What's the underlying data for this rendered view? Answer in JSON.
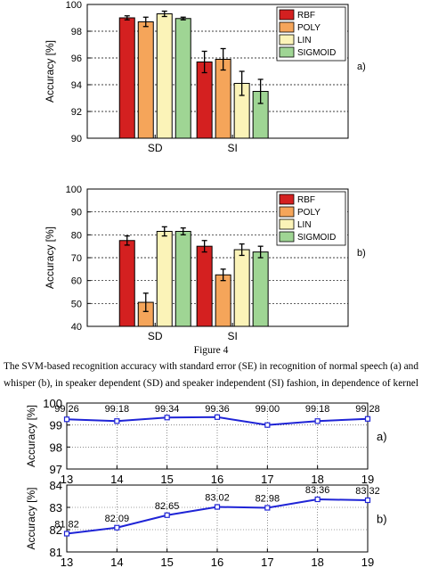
{
  "figure_caption": "Figure 4",
  "caption_line1": "The SVM-based recognition accuracy with standard error (SE) in recognition of normal speech (a) and",
  "caption_line2": "whisper (b), in speaker dependent (SD) and speaker independent (SI) fashion, in dependence of kernel",
  "colors": {
    "RBF": "#d42020",
    "POLY": "#f5a55a",
    "LIN": "#fbf3b8",
    "SIGMOID": "#9fd594",
    "line": "#1f24d6"
  },
  "chart_data": [
    {
      "id": "a",
      "panel_tag": "a)",
      "type": "bar",
      "ylabel": "Accuracy [%]",
      "ylim": [
        90,
        100
      ],
      "yticks": [
        "90",
        "92",
        "94",
        "96",
        "98",
        "100"
      ],
      "grid": true,
      "legend": "top-right",
      "categories": [
        "SD",
        "SI"
      ],
      "series": [
        {
          "name": "RBF",
          "values": [
            99.0,
            95.7
          ],
          "errors": [
            0.15,
            0.8
          ]
        },
        {
          "name": "POLY",
          "values": [
            98.7,
            95.9
          ],
          "errors": [
            0.35,
            0.8
          ]
        },
        {
          "name": "LIN",
          "values": [
            99.3,
            94.1
          ],
          "errors": [
            0.2,
            0.9
          ]
        },
        {
          "name": "SIGMOID",
          "values": [
            98.95,
            93.5
          ],
          "errors": [
            0.1,
            0.9
          ]
        }
      ]
    },
    {
      "id": "b",
      "panel_tag": "b)",
      "type": "bar",
      "ylabel": "Accuracy [%]",
      "ylim": [
        40,
        100
      ],
      "yticks": [
        "40",
        "50",
        "60",
        "70",
        "80",
        "90",
        "100"
      ],
      "grid": true,
      "legend": "top-right",
      "categories": [
        "SD",
        "SI"
      ],
      "series": [
        {
          "name": "RBF",
          "values": [
            77.5,
            75.0
          ],
          "errors": [
            2.0,
            2.5
          ]
        },
        {
          "name": "POLY",
          "values": [
            50.5,
            62.5
          ],
          "errors": [
            4.0,
            2.5
          ]
        },
        {
          "name": "LIN",
          "values": [
            81.5,
            73.5
          ],
          "errors": [
            2.0,
            2.5
          ]
        },
        {
          "name": "SIGMOID",
          "values": [
            81.5,
            72.5
          ],
          "errors": [
            1.5,
            2.5
          ]
        }
      ]
    },
    {
      "id": "c",
      "panel_tag": "a)",
      "type": "line",
      "ylabel": "Accuracy [%]",
      "ylim": [
        97,
        100
      ],
      "yticks": [
        "97",
        "98",
        "99",
        "100"
      ],
      "grid": true,
      "x": [
        13,
        14,
        15,
        16,
        17,
        18,
        19
      ],
      "values": [
        99.26,
        99.18,
        99.34,
        99.36,
        99.0,
        99.18,
        99.28
      ],
      "labels": [
        "99.26",
        "99.18",
        "99.34",
        "99.36",
        "99.00",
        "99.18",
        "99.28"
      ]
    },
    {
      "id": "d",
      "panel_tag": "b)",
      "type": "line",
      "ylabel": "Accuracy [%]",
      "ylim": [
        81,
        84
      ],
      "yticks": [
        "81",
        "82",
        "83",
        "84"
      ],
      "xticks": [
        "13",
        "14",
        "15",
        "16",
        "17",
        "18",
        "19"
      ],
      "grid": true,
      "x": [
        13,
        14,
        15,
        16,
        17,
        18,
        19
      ],
      "values": [
        81.82,
        82.09,
        82.65,
        83.02,
        82.98,
        83.36,
        83.32
      ],
      "labels": [
        "81.82",
        "82.09",
        "82.65",
        "83.02",
        "82.98",
        "83.36",
        "83.32"
      ]
    }
  ]
}
